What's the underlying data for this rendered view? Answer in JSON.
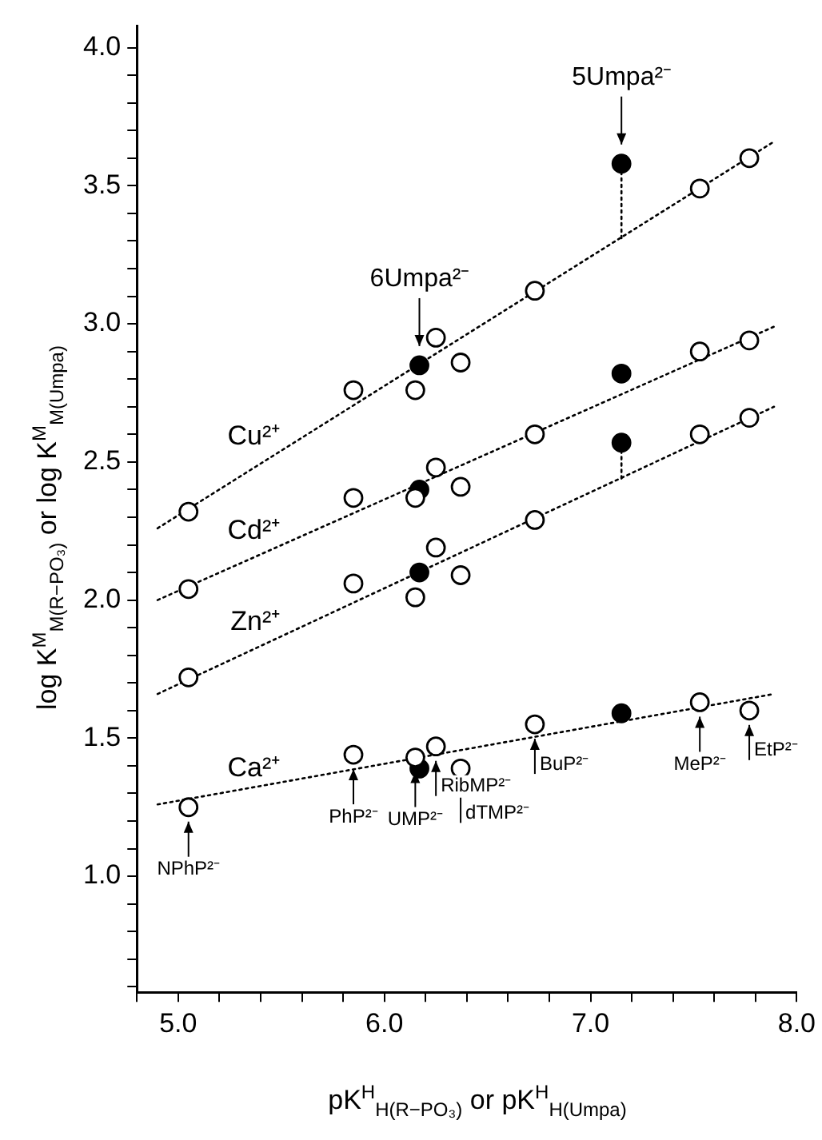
{
  "chart_data": {
    "type": "scatter",
    "xlabel": "pK$^{H}$$_{H(R−PO₃)}$  or  pK$^{H}$$_{H(Umpa)}$",
    "ylabel": "log K$^{M}$$_{M(R−PO₃)}$  or  log K$^{M}$$_{M(Umpa)}$",
    "xlim": [
      4.8,
      8.0
    ],
    "xticks": [
      {
        "value": 4.8,
        "label": null
      },
      {
        "value": 5.0,
        "label": "5.0"
      },
      {
        "value": 5.2,
        "label": null
      },
      {
        "value": 5.4,
        "label": null
      },
      {
        "value": 5.6,
        "label": null
      },
      {
        "value": 5.8,
        "label": null
      },
      {
        "value": 6.0,
        "label": "6.0"
      },
      {
        "value": 6.2,
        "label": null
      },
      {
        "value": 6.4,
        "label": null
      },
      {
        "value": 6.6,
        "label": null
      },
      {
        "value": 6.8,
        "label": null
      },
      {
        "value": 7.0,
        "label": "7.0"
      },
      {
        "value": 7.2,
        "label": null
      },
      {
        "value": 7.4,
        "label": null
      },
      {
        "value": 7.6,
        "label": null
      },
      {
        "value": 7.8,
        "label": null
      },
      {
        "value": 8.0,
        "label": "8.0"
      }
    ],
    "ylim": [
      0.58,
      4.08
    ],
    "yticks": [
      {
        "value": 0.6,
        "label": null
      },
      {
        "value": 0.7,
        "label": null
      },
      {
        "value": 0.8,
        "label": null
      },
      {
        "value": 0.9,
        "label": null
      },
      {
        "value": 1.0,
        "label": "1.0"
      },
      {
        "value": 1.1,
        "label": null
      },
      {
        "value": 1.2,
        "label": null
      },
      {
        "value": 1.3,
        "label": null
      },
      {
        "value": 1.4,
        "label": null
      },
      {
        "value": 1.5,
        "label": "1.5"
      },
      {
        "value": 1.6,
        "label": null
      },
      {
        "value": 1.7,
        "label": null
      },
      {
        "value": 1.8,
        "label": null
      },
      {
        "value": 1.9,
        "label": null
      },
      {
        "value": 2.0,
        "label": "2.0"
      },
      {
        "value": 2.1,
        "label": null
      },
      {
        "value": 2.2,
        "label": null
      },
      {
        "value": 2.3,
        "label": null
      },
      {
        "value": 2.4,
        "label": null
      },
      {
        "value": 2.5,
        "label": "2.5"
      },
      {
        "value": 2.6,
        "label": null
      },
      {
        "value": 2.7,
        "label": null
      },
      {
        "value": 2.8,
        "label": null
      },
      {
        "value": 2.9,
        "label": null
      },
      {
        "value": 3.0,
        "label": "3.0"
      },
      {
        "value": 3.1,
        "label": null
      },
      {
        "value": 3.2,
        "label": null
      },
      {
        "value": 3.3,
        "label": null
      },
      {
        "value": 3.4,
        "label": null
      },
      {
        "value": 3.5,
        "label": "3.5"
      },
      {
        "value": 3.6,
        "label": null
      },
      {
        "value": 3.7,
        "label": null
      },
      {
        "value": 3.8,
        "label": null
      },
      {
        "value": 3.9,
        "label": null
      },
      {
        "value": 4.0,
        "label": "4.0"
      }
    ],
    "grid": false,
    "legend": false,
    "marker": "circle",
    "series": [
      {
        "type": "line",
        "name": "Cu²⁺",
        "color": "#000000",
        "marker": "none",
        "line_style": "dotted",
        "x": [
          4.9,
          7.89
        ],
        "values": [
          2.26,
          3.66
        ]
      },
      {
        "type": "line",
        "name": "Cd²⁺",
        "color": "#000000",
        "marker": "none",
        "line_style": "dotted",
        "x": [
          4.9,
          7.89
        ],
        "values": [
          2.0,
          2.99
        ]
      },
      {
        "type": "line",
        "name": "Zn²⁺",
        "color": "#000000",
        "marker": "none",
        "line_style": "dotted",
        "x": [
          4.9,
          7.89
        ],
        "values": [
          1.66,
          2.7
        ]
      },
      {
        "type": "line",
        "name": "Ca²⁺",
        "color": "#000000",
        "marker": "none",
        "line_style": "dotted",
        "x": [
          4.9,
          7.89
        ],
        "values": [
          1.26,
          1.66
        ]
      },
      {
        "type": "line",
        "color": "#000000",
        "marker": "none",
        "line_style": "dotted",
        "x": [
          7.15,
          7.15
        ],
        "values": [
          3.31,
          3.58
        ]
      },
      {
        "type": "line",
        "color": "#000000",
        "marker": "none",
        "line_style": "dotted",
        "x": [
          7.15,
          7.15
        ],
        "values": [
          2.44,
          2.57
        ]
      },
      {
        "color": "#ffffff",
        "x": [
          5.05,
          5.85,
          6.15,
          6.25,
          6.37,
          6.73,
          7.53,
          7.77
        ],
        "values": [
          2.32,
          2.76,
          2.76,
          2.95,
          2.86,
          3.12,
          3.49,
          3.6
        ]
      },
      {
        "color": "#ffffff",
        "x": [
          5.05,
          5.85,
          6.15,
          6.25,
          6.37,
          6.73,
          7.53,
          7.77
        ],
        "values": [
          2.04,
          2.37,
          2.37,
          2.48,
          2.41,
          2.6,
          2.9,
          2.94
        ]
      },
      {
        "color": "#ffffff",
        "x": [
          5.05,
          5.85,
          6.15,
          6.25,
          6.37,
          6.73,
          7.53,
          7.77
        ],
        "values": [
          1.72,
          2.06,
          2.01,
          2.19,
          2.09,
          2.29,
          2.6,
          2.66
        ]
      },
      {
        "color": "#ffffff",
        "x": [
          5.05,
          5.85,
          6.15,
          6.25,
          6.37,
          6.73,
          7.53,
          7.77
        ],
        "values": [
          1.25,
          1.44,
          1.43,
          1.47,
          1.39,
          1.55,
          1.63,
          1.6
        ]
      },
      {
        "color": "#000000",
        "x": [
          6.17,
          7.15
        ],
        "values": [
          2.85,
          3.58
        ]
      },
      {
        "color": "#000000",
        "x": [
          6.17,
          7.15
        ],
        "values": [
          2.4,
          2.82
        ]
      },
      {
        "color": "#000000",
        "x": [
          6.17,
          7.15
        ],
        "values": [
          2.1,
          2.57
        ]
      },
      {
        "color": "#000000",
        "x": [
          6.17,
          7.15
        ],
        "values": [
          1.39,
          1.59
        ]
      }
    ],
    "annotations": [
      {
        "text": "5Umpa²⁻",
        "x": 7.15,
        "y": 3.58
      },
      {
        "text": "6Umpa²⁻",
        "x": 6.17,
        "y": 2.85
      },
      {
        "text": "NPhP²⁻",
        "x": 5.05,
        "y": 1.25
      },
      {
        "text": "PhP²⁻",
        "x": 5.85,
        "y": 1.44
      },
      {
        "text": "UMP²⁻",
        "x": 6.15,
        "y": 1.43
      },
      {
        "text": "RibMP²⁻",
        "x": 6.25,
        "y": 1.47
      },
      {
        "text": "dTMP²⁻",
        "x": 6.37,
        "y": 1.39
      },
      {
        "text": "BuP²⁻",
        "x": 6.73,
        "y": 1.55
      },
      {
        "text": "MeP²⁻",
        "x": 7.53,
        "y": 1.63
      },
      {
        "text": "EtP²⁻",
        "x": 7.77,
        "y": 1.6
      }
    ]
  }
}
